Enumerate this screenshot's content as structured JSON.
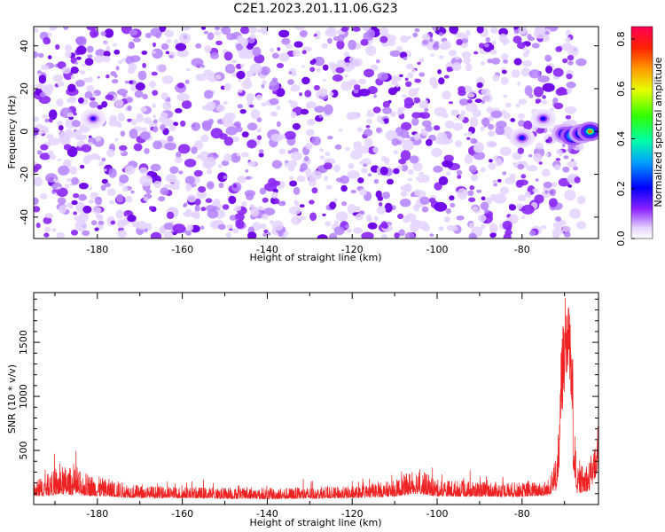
{
  "figure": {
    "title": "C2E1.2023.201.11.06.G23"
  },
  "chart_data": [
    {
      "type": "heatmap",
      "title": "",
      "xlabel": "Height of straight line (km)",
      "ylabel": "Frequency (Hz)",
      "xlim": [
        -195,
        -62
      ],
      "ylim": [
        -50,
        49
      ],
      "x_ticks": [
        "-180",
        "-160",
        "-140",
        "-120",
        "-100",
        "-80"
      ],
      "y_ticks": [
        "-40",
        "-20",
        "0",
        "20",
        "40"
      ],
      "noise_x_range": [
        -195,
        -66
      ],
      "noise_level": 0.1,
      "hotspots": [
        {
          "x": -181,
          "y": 6,
          "value": 0.18
        },
        {
          "x": -80,
          "y": -3,
          "value": 0.22
        },
        {
          "x": -75,
          "y": 6,
          "value": 0.2
        },
        {
          "x": -70,
          "y": -1,
          "value": 0.45
        },
        {
          "x": -68,
          "y": -2,
          "value": 0.8
        },
        {
          "x": -66,
          "y": -1,
          "value": 0.55
        },
        {
          "x": -64,
          "y": 0,
          "value": 0.7
        }
      ],
      "colorbar": {
        "label": "Normalized spectral amplitude",
        "range": [
          0,
          0.85
        ],
        "ticks": [
          "0.0",
          "0.2",
          "0.4",
          "0.6",
          "0.8"
        ],
        "colormap": "gist_rainbow (violet-blue-cyan-green-yellow-red)"
      },
      "grid": false
    },
    {
      "type": "line",
      "title": "",
      "xlabel": "Height of straight line (km)",
      "ylabel": "SNR (10 * v/v)",
      "xlim": [
        -195,
        -62
      ],
      "ylim": [
        0,
        1960
      ],
      "x_ticks": [
        "-180",
        "-160",
        "-140",
        "-120",
        "-100",
        "-80"
      ],
      "y_ticks": [
        "500",
        "1000",
        "1500"
      ],
      "series": [
        {
          "color": "#ee2222",
          "envelope": [
            {
              "x": -195,
              "low": 60,
              "high": 320
            },
            {
              "x": -188,
              "low": 70,
              "high": 560
            },
            {
              "x": -180,
              "low": 60,
              "high": 400
            },
            {
              "x": -170,
              "low": 50,
              "high": 260
            },
            {
              "x": -160,
              "low": 50,
              "high": 240
            },
            {
              "x": -140,
              "low": 40,
              "high": 230
            },
            {
              "x": -120,
              "low": 50,
              "high": 250
            },
            {
              "x": -110,
              "low": 60,
              "high": 330
            },
            {
              "x": -105,
              "low": 80,
              "high": 520
            },
            {
              "x": -100,
              "low": 60,
              "high": 350
            },
            {
              "x": -90,
              "low": 60,
              "high": 320
            },
            {
              "x": -80,
              "low": 60,
              "high": 300
            },
            {
              "x": -74,
              "low": 70,
              "high": 330
            },
            {
              "x": -72,
              "low": 100,
              "high": 700
            },
            {
              "x": -70,
              "low": 600,
              "high": 1900
            },
            {
              "x": -69,
              "low": 900,
              "high": 1960
            },
            {
              "x": -68,
              "low": 300,
              "high": 1300
            },
            {
              "x": -67,
              "low": 80,
              "high": 500
            },
            {
              "x": -64,
              "low": 100,
              "high": 650
            },
            {
              "x": -62,
              "low": 300,
              "high": 900
            }
          ]
        }
      ],
      "grid": false
    }
  ]
}
